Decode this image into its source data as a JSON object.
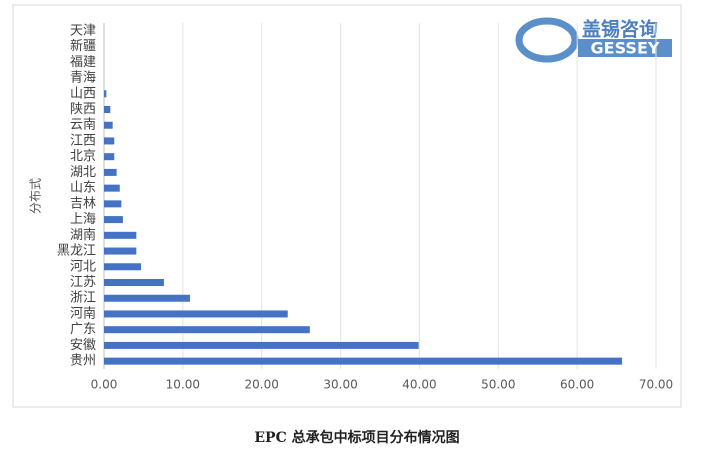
{
  "chart_data": {
    "type": "barh",
    "caption": "EPC 总承包中标项目分布情况图",
    "y_label": "分布式",
    "logo": {
      "name": "盖锡咨询",
      "brand": "GESSEY"
    },
    "categories": [
      "天津",
      "新疆",
      "福建",
      "青海",
      "山西",
      "陕西",
      "云南",
      "江西",
      "北京",
      "湖北",
      "山东",
      "吉林",
      "上海",
      "湖南",
      "黑龙江",
      "河北",
      "江苏",
      "浙江",
      "河南",
      "广东",
      "安徽",
      "贵州"
    ],
    "values": [
      0,
      0,
      0,
      0,
      0.3,
      0.8,
      1.1,
      1.3,
      1.3,
      1.6,
      2.0,
      2.2,
      2.4,
      4.1,
      4.1,
      4.7,
      7.6,
      10.9,
      23.3,
      26.1,
      39.9,
      65.7
    ],
    "color": "#4472c4",
    "xlim": [
      0,
      70
    ],
    "xticks": [
      {
        "value": 0,
        "label": "0.00"
      },
      {
        "value": 10,
        "label": "10.00"
      },
      {
        "value": 20,
        "label": "20.00"
      },
      {
        "value": 30,
        "label": "30.00"
      },
      {
        "value": 40,
        "label": "40.00"
      },
      {
        "value": 50,
        "label": "50.00"
      },
      {
        "value": 60,
        "label": "60.00"
      },
      {
        "value": 70,
        "label": "70.00"
      }
    ],
    "grid": true
  }
}
